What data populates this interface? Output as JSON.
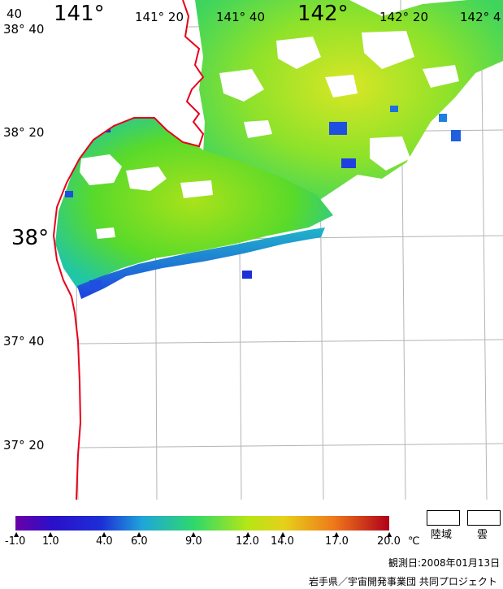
{
  "map": {
    "lat_labels": [
      "38° 40",
      "38° 20",
      "38°",
      "37° 40",
      "37° 20"
    ],
    "lon_labels": [
      "141°",
      "141° 20",
      "141° 40",
      "142°",
      "142° 20",
      "142° 4"
    ],
    "corner_label": "40"
  },
  "legend": {
    "ticks": [
      "-1.0",
      "1.0",
      "4.0",
      "6.0",
      "9.0",
      "12.0",
      "14.0",
      "17.0",
      "20.0"
    ],
    "unit": "℃",
    "land_label": "陸域",
    "cloud_label": "雲",
    "colors": [
      "#6a00a8",
      "#1d2fd6",
      "#1f6fe0",
      "#1fb6c9",
      "#2fd96a",
      "#9fe60f",
      "#e6e01a",
      "#f0a01a",
      "#e8501a",
      "#b0001a"
    ]
  },
  "footer": {
    "date": "観測日:2008年01月13日",
    "credit": "岩手県／宇宙開発事業団 共同プロジェクト"
  },
  "colors": {
    "coastline": "#e8001a",
    "grid": "#b4b4b4",
    "land": "#ffffff"
  }
}
